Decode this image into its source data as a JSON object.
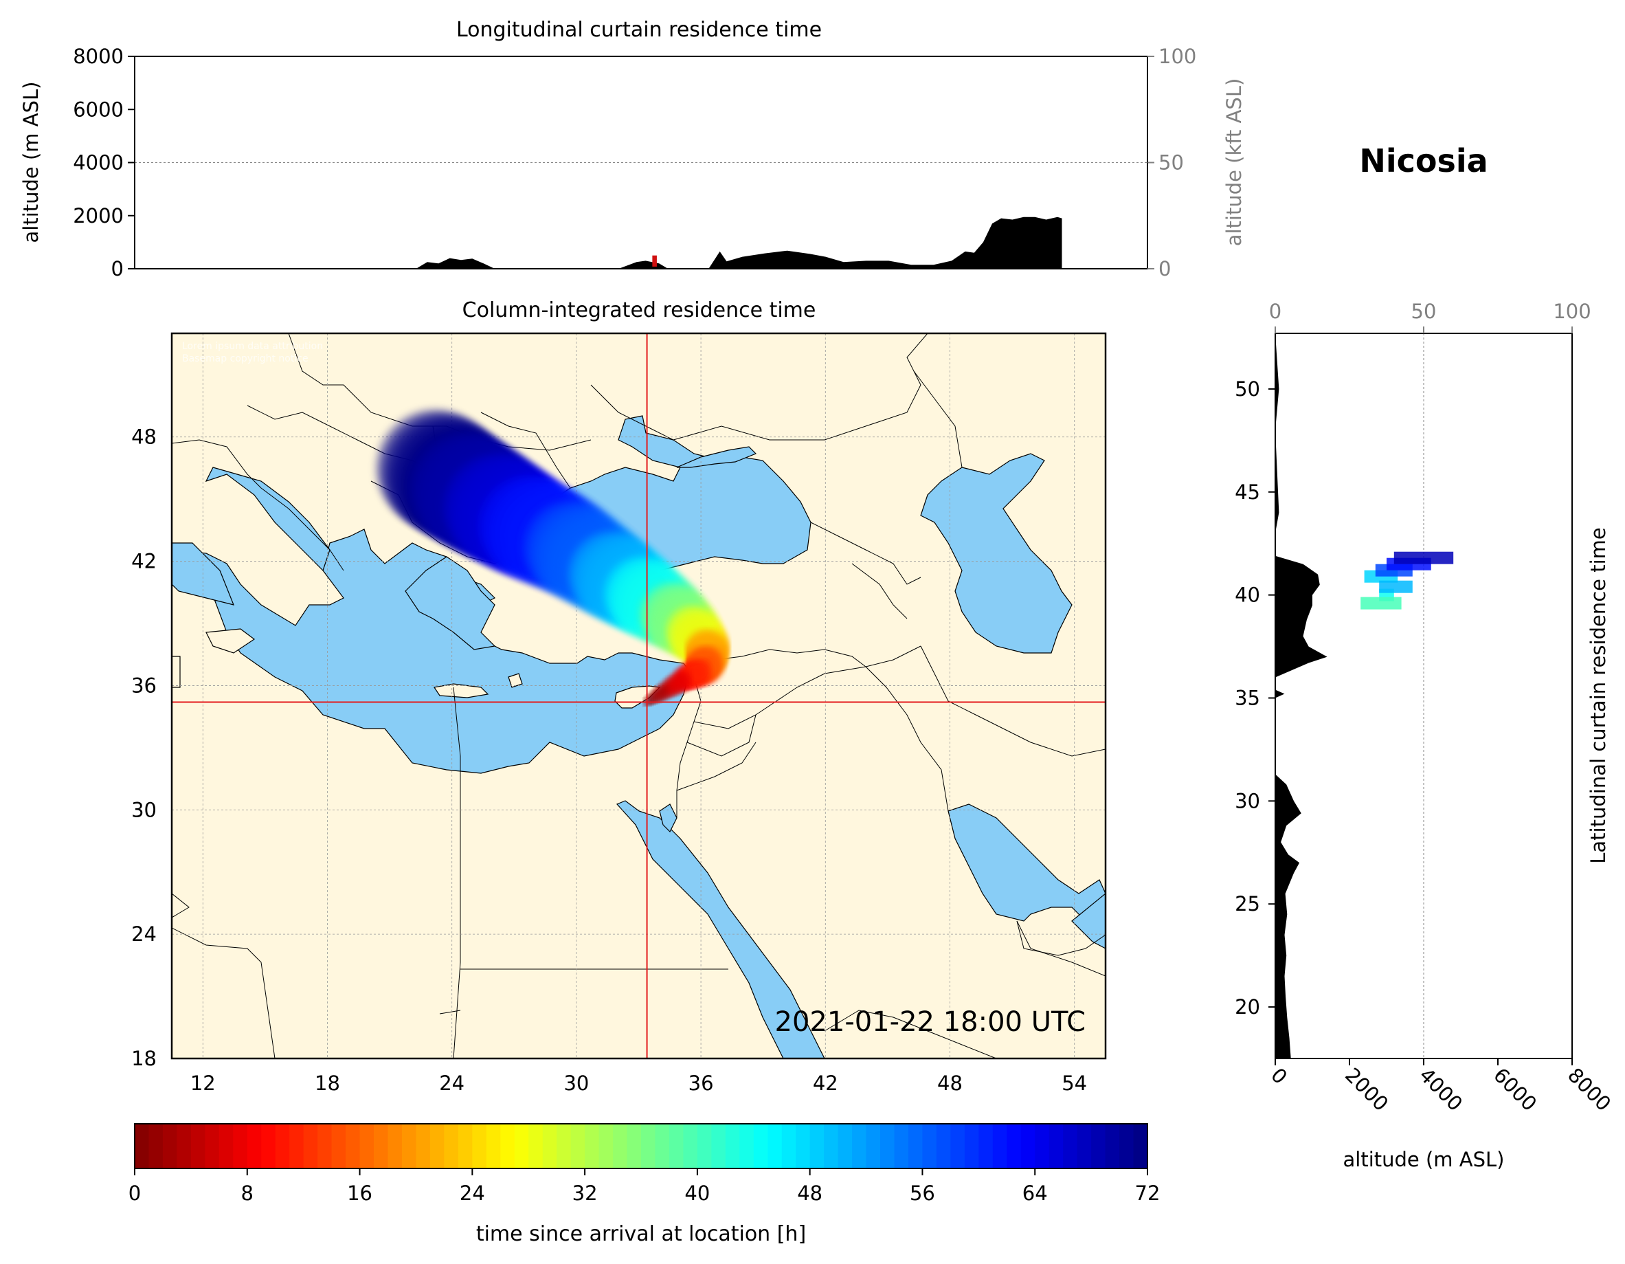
{
  "chart_data": [
    {
      "type": "area",
      "id": "top",
      "title": "Longitudinal curtain residence time",
      "ylabel": "altitude (m ASL)",
      "ylabel_right": "altitude (kft ASL)",
      "xlim": [
        10.5,
        55.5
      ],
      "ylim": [
        0,
        8000
      ],
      "ylim_right_kft": [
        0,
        100
      ],
      "yticks": [
        0,
        2000,
        4000,
        6000,
        8000
      ],
      "yticks_right": [
        0,
        50,
        100
      ],
      "grid": true,
      "terrain": [
        [
          10.5,
          0
        ],
        [
          23,
          0
        ],
        [
          23.5,
          250
        ],
        [
          24,
          200
        ],
        [
          24.5,
          400
        ],
        [
          25,
          330
        ],
        [
          25.5,
          380
        ],
        [
          26,
          200
        ],
        [
          26.5,
          0
        ],
        [
          32,
          0
        ],
        [
          32.8,
          250
        ],
        [
          33.2,
          300
        ],
        [
          33.8,
          200
        ],
        [
          34.2,
          0
        ],
        [
          36,
          0
        ],
        [
          36.5,
          650
        ],
        [
          36.8,
          280
        ],
        [
          37.5,
          450
        ],
        [
          38.5,
          580
        ],
        [
          39.5,
          680
        ],
        [
          40.5,
          560
        ],
        [
          41.2,
          450
        ],
        [
          42,
          250
        ],
        [
          43,
          300
        ],
        [
          44,
          300
        ],
        [
          45,
          150
        ],
        [
          46,
          150
        ],
        [
          46.8,
          300
        ],
        [
          47.4,
          650
        ],
        [
          47.8,
          600
        ],
        [
          48.2,
          1000
        ],
        [
          48.6,
          1700
        ],
        [
          49,
          1900
        ],
        [
          49.5,
          1850
        ],
        [
          50,
          1950
        ],
        [
          50.5,
          1950
        ],
        [
          51,
          1850
        ],
        [
          51.5,
          1950
        ],
        [
          51.7,
          1900
        ],
        [
          51.7,
          0
        ],
        [
          55.5,
          0
        ]
      ],
      "plume_columns": [
        [
          33.5,
          33.7,
          80,
          500
        ]
      ]
    },
    {
      "type": "heatmap",
      "id": "map",
      "title": "Column-integrated residence time",
      "xlim": [
        10.5,
        55.5
      ],
      "ylim": [
        18,
        53
      ],
      "xticks": [
        12,
        18,
        24,
        30,
        36,
        42,
        48,
        54
      ],
      "yticks": [
        18,
        24,
        30,
        36,
        42,
        48
      ],
      "location_lon": 33.4,
      "location_lat": 35.2,
      "timestamp": "2021-01-22 18:00 UTC",
      "attribution": [
        "Lorem ipsum data attribution",
        "Basemap copyright notice"
      ],
      "grid": true,
      "plume": [
        [
          33.4,
          35.2,
          0
        ],
        [
          34.2,
          35.7,
          4
        ],
        [
          35.2,
          36.3,
          8
        ],
        [
          36,
          36.7,
          12
        ],
        [
          36.3,
          37.2,
          16
        ],
        [
          36.3,
          37.8,
          22
        ],
        [
          35.5,
          38.7,
          30
        ],
        [
          34.5,
          39.5,
          38
        ],
        [
          33,
          40.5,
          46
        ],
        [
          31.5,
          41.5,
          52
        ],
        [
          29.5,
          42.8,
          58
        ],
        [
          27.5,
          43.8,
          63
        ],
        [
          26,
          44.7,
          67
        ],
        [
          24.5,
          45.6,
          70
        ],
        [
          23,
          46.6,
          72
        ]
      ]
    },
    {
      "type": "area",
      "id": "right",
      "title": "Nicosia",
      "ylabel": "Latitudinal curtain residence time",
      "xlabel": "altitude (m ASL)",
      "xlim": [
        0,
        8000
      ],
      "xlim_top_kft": [
        0,
        100
      ],
      "xticks": [
        0,
        2000,
        4000,
        6000,
        8000
      ],
      "xticks_top": [
        0,
        50,
        100
      ],
      "ylim": [
        17.5,
        52.7
      ],
      "yticks": [
        20,
        25,
        30,
        35,
        40,
        45,
        50
      ],
      "grid": true,
      "terrain": [
        [
          17.5,
          420
        ],
        [
          18.5,
          380
        ],
        [
          19.5,
          320
        ],
        [
          20.5,
          280
        ],
        [
          21.5,
          250
        ],
        [
          22.5,
          300
        ],
        [
          23.5,
          250
        ],
        [
          24.5,
          320
        ],
        [
          25.5,
          270
        ],
        [
          26.5,
          500
        ],
        [
          27,
          650
        ],
        [
          27.4,
          350
        ],
        [
          28,
          150
        ],
        [
          28.8,
          300
        ],
        [
          29.4,
          700
        ],
        [
          30,
          500
        ],
        [
          30.8,
          300
        ],
        [
          31.3,
          0
        ],
        [
          35,
          0
        ],
        [
          35.2,
          250
        ],
        [
          35.4,
          0
        ],
        [
          36,
          0
        ],
        [
          36.7,
          900
        ],
        [
          37,
          1400
        ],
        [
          37.5,
          900
        ],
        [
          38,
          750
        ],
        [
          38.8,
          850
        ],
        [
          39.5,
          1000
        ],
        [
          40,
          1000
        ],
        [
          40.5,
          1200
        ],
        [
          41,
          1150
        ],
        [
          41.5,
          750
        ],
        [
          41.9,
          0
        ],
        [
          43,
          0
        ],
        [
          44,
          100
        ],
        [
          46,
          50
        ],
        [
          48,
          0
        ],
        [
          50,
          100
        ],
        [
          52.7,
          0
        ]
      ],
      "plume_bars": [
        [
          40.9,
          2400,
          3300,
          48
        ],
        [
          41.2,
          2700,
          3700,
          58
        ],
        [
          41.5,
          3000,
          4200,
          62
        ],
        [
          41.8,
          3200,
          4800,
          68
        ],
        [
          40.0,
          2800,
          3200,
          44
        ],
        [
          39.6,
          2300,
          3400,
          40
        ],
        [
          40.4,
          2800,
          3700,
          50
        ]
      ]
    },
    {
      "type": "heatmap",
      "id": "colorbar",
      "xlabel": "time since arrival at location [h]",
      "xlim": [
        0,
        72
      ],
      "xticks": [
        0,
        8,
        16,
        24,
        32,
        40,
        48,
        56,
        64,
        72
      ]
    }
  ],
  "colors": {
    "land": "#fff7de",
    "sea": "#88cdf6",
    "border": "#000000",
    "crosshair": "#e31a1c",
    "terrain": "#000000",
    "grid": "#999999",
    "secondary_axis": "#808080"
  }
}
